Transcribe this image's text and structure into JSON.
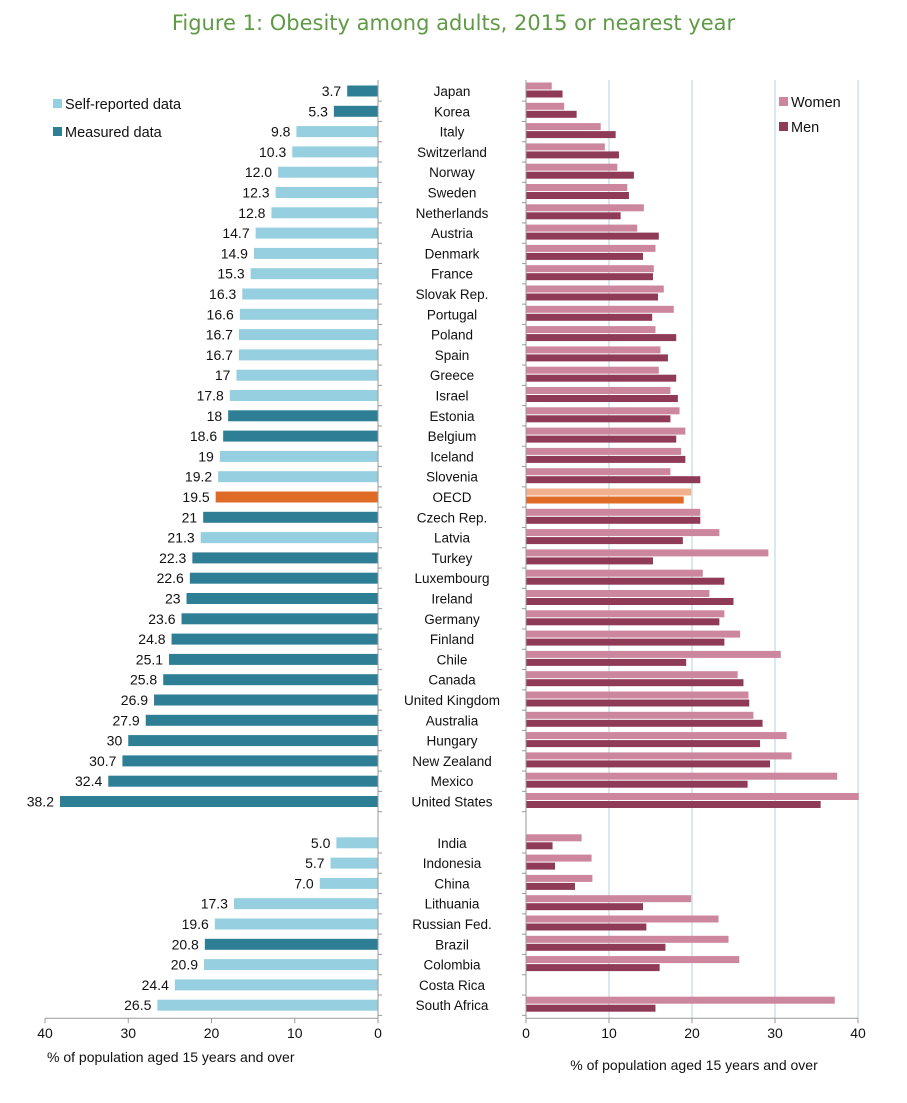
{
  "title": "Figure 1: Obesity among adults, 2015 or nearest year",
  "colors": {
    "self_reported": "#96cfe0",
    "measured": "#2e7f96",
    "oecd_left": "#e06b27",
    "women": "#cc879e",
    "men": "#8f3a57",
    "oecd_women": "#f3b08e",
    "oecd_men": "#e06b27",
    "grid": "#aed5df",
    "axis": "#999999"
  },
  "chart_data": [
    {
      "type": "bar",
      "orientation": "horizontal",
      "direction": "right-to-left",
      "title": "",
      "xlabel": "% of population aged 15 years and over",
      "xlim": [
        0,
        40
      ],
      "x_ticks": [
        "40",
        "30",
        "20",
        "10",
        "0"
      ],
      "legend": {
        "placement": "top-left",
        "entries": [
          {
            "key": "self_reported",
            "label": "Self-reported data"
          },
          {
            "key": "measured",
            "label": "Measured data"
          }
        ]
      },
      "groups": [
        {
          "categories": [
            "Japan",
            "Korea",
            "Italy",
            "Switzerland",
            "Norway",
            "Sweden",
            "Netherlands",
            "Austria",
            "Denmark",
            "France",
            "Slovak Rep.",
            "Portugal",
            "Poland",
            "Spain",
            "Greece",
            "Israel",
            "Estonia",
            "Belgium",
            "Iceland",
            "Slovenia",
            "OECD",
            "Czech Rep.",
            "Latvia",
            "Turkey",
            "Luxembourg",
            "Ireland",
            "Germany",
            "Finland",
            "Chile",
            "Canada",
            "United Kingdom",
            "Australia",
            "Hungary",
            "New Zealand",
            "Mexico",
            "United States"
          ],
          "values": [
            3.7,
            5.3,
            9.8,
            10.3,
            12.0,
            12.3,
            12.8,
            14.7,
            14.9,
            15.3,
            16.3,
            16.6,
            16.7,
            16.7,
            17,
            17.8,
            18,
            18.6,
            19,
            19.2,
            19.5,
            21,
            21.3,
            22.3,
            22.6,
            23,
            23.6,
            24.8,
            25.1,
            25.8,
            26.9,
            27.9,
            30,
            30.7,
            32.4,
            38.2
          ],
          "labels": [
            "3.7",
            "5.3",
            "9.8",
            "10.3",
            "12.0",
            "12.3",
            "12.8",
            "14.7",
            "14.9",
            "15.3",
            "16.3",
            "16.6",
            "16.7",
            "16.7",
            "17",
            "17.8",
            "18",
            "18.6",
            "19",
            "19.2",
            "19.5",
            "21",
            "21.3",
            "22.3",
            "22.6",
            "23",
            "23.6",
            "24.8",
            "25.1",
            "25.8",
            "26.9",
            "27.9",
            "30",
            "30.7",
            "32.4",
            "38.2"
          ],
          "data_type": [
            "measured",
            "measured",
            "self_reported",
            "self_reported",
            "self_reported",
            "self_reported",
            "self_reported",
            "self_reported",
            "self_reported",
            "self_reported",
            "self_reported",
            "self_reported",
            "self_reported",
            "self_reported",
            "self_reported",
            "self_reported",
            "measured",
            "measured",
            "self_reported",
            "self_reported",
            "oecd",
            "measured",
            "self_reported",
            "measured",
            "measured",
            "measured",
            "measured",
            "measured",
            "measured",
            "measured",
            "measured",
            "measured",
            "measured",
            "measured",
            "measured",
            "measured"
          ]
        },
        {
          "categories": [
            "India",
            "Indonesia",
            "China",
            "Lithuania",
            "Russian Fed.",
            "Brazil",
            "Colombia",
            "Costa Rica",
            "South Africa"
          ],
          "values": [
            5.0,
            5.7,
            7.0,
            17.3,
            19.6,
            20.8,
            20.9,
            24.4,
            26.5
          ],
          "labels": [
            "5.0",
            "5.7",
            "7.0",
            "17.3",
            "19.6",
            "20.8",
            "20.9",
            "24.4",
            "26.5"
          ],
          "data_type": [
            "self_reported",
            "self_reported",
            "self_reported",
            "self_reported",
            "self_reported",
            "measured",
            "self_reported",
            "self_reported",
            "self_reported"
          ]
        }
      ]
    },
    {
      "type": "bar",
      "orientation": "horizontal",
      "title": "",
      "xlabel": "% of population aged 15 years and over",
      "xlim": [
        0,
        40
      ],
      "x_ticks": [
        "0",
        "10",
        "20",
        "30",
        "40"
      ],
      "grid": true,
      "legend": {
        "placement": "top-right",
        "entries": [
          {
            "key": "women",
            "label": "Women"
          },
          {
            "key": "men",
            "label": "Men"
          }
        ]
      },
      "series": [
        {
          "name": "Women",
          "key": "women",
          "values": [
            3.1,
            4.6,
            9.0,
            9.5,
            11.0,
            12.2,
            14.2,
            13.4,
            15.6,
            15.4,
            16.6,
            17.8,
            15.6,
            16.2,
            16.0,
            17.4,
            18.5,
            19.2,
            18.7,
            17.4,
            19.9,
            21.0,
            23.3,
            29.2,
            21.3,
            22.1,
            23.9,
            25.8,
            30.7,
            25.5,
            26.8,
            27.4,
            31.4,
            32.0,
            37.5,
            40.1,
            6.7,
            7.9,
            8.0,
            19.9,
            23.2,
            24.4,
            25.7,
            null,
            37.2
          ]
        },
        {
          "name": "Men",
          "key": "men",
          "values": [
            4.4,
            6.1,
            10.8,
            11.2,
            13.0,
            12.4,
            11.4,
            16.0,
            14.1,
            15.3,
            15.9,
            15.2,
            18.1,
            17.1,
            18.1,
            18.3,
            17.4,
            18.1,
            19.2,
            21.0,
            19.0,
            21.0,
            18.9,
            15.3,
            23.9,
            25.0,
            23.3,
            23.9,
            19.3,
            26.2,
            26.9,
            28.5,
            28.2,
            29.4,
            26.7,
            35.5,
            3.2,
            3.5,
            5.9,
            14.1,
            14.5,
            16.8,
            16.1,
            null,
            15.6
          ]
        }
      ],
      "groups": [
        {
          "categories": [
            "Japan",
            "Korea",
            "Italy",
            "Switzerland",
            "Norway",
            "Sweden",
            "Netherlands",
            "Austria",
            "Denmark",
            "France",
            "Slovak Rep.",
            "Portugal",
            "Poland",
            "Spain",
            "Greece",
            "Israel",
            "Estonia",
            "Belgium",
            "Iceland",
            "Slovenia",
            "OECD",
            "Czech Rep.",
            "Latvia",
            "Turkey",
            "Luxembourg",
            "Ireland",
            "Germany",
            "Finland",
            "Chile",
            "Canada",
            "United Kingdom",
            "Australia",
            "Hungary",
            "New Zealand",
            "Mexico",
            "United States"
          ]
        },
        {
          "categories": [
            "India",
            "Indonesia",
            "China",
            "Lithuania",
            "Russian Fed.",
            "Brazil",
            "Colombia",
            "Costa Rica",
            "South Africa"
          ]
        }
      ]
    }
  ]
}
